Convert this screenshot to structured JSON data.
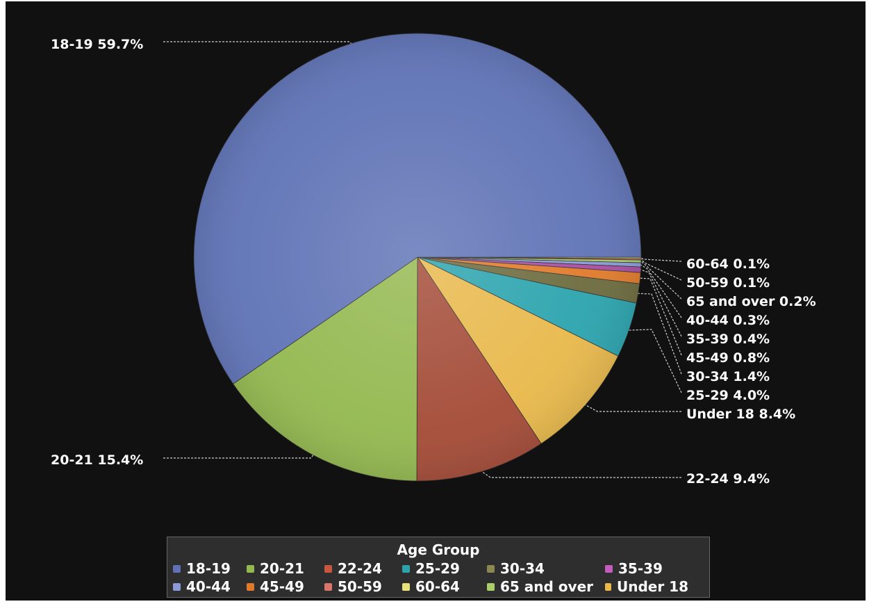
{
  "chart_data": {
    "type": "pie",
    "series": [
      {
        "label": "18-19",
        "value": 59.7,
        "display": "18-19 59.7%",
        "color": "#5e72b5"
      },
      {
        "label": "20-21",
        "value": 15.4,
        "display": "20-21 15.4%",
        "color": "#93b84e"
      },
      {
        "label": "22-24",
        "value": 9.4,
        "display": "22-24 9.4%",
        "color": "#a34a36"
      },
      {
        "label": "Under 18",
        "value": 8.4,
        "display": "Under 18 8.4%",
        "color": "#e8b84a"
      },
      {
        "label": "25-29",
        "value": 4.0,
        "display": "25-29 4.0%",
        "color": "#2aa3ad"
      },
      {
        "label": "30-34",
        "value": 1.4,
        "display": "30-34 1.4%",
        "color": "#6b6a3d"
      },
      {
        "label": "45-49",
        "value": 0.8,
        "display": "45-49 0.8%",
        "color": "#e07a2a"
      },
      {
        "label": "35-39",
        "value": 0.4,
        "display": "35-39 0.4%",
        "color": "#a84ea2"
      },
      {
        "label": "40-44",
        "value": 0.3,
        "display": "40-44 0.3%",
        "color": "#8a9ad8"
      },
      {
        "label": "65 and over",
        "value": 0.2,
        "display": "65 and over 0.2%",
        "color": "#a9cf6b"
      },
      {
        "label": "50-59",
        "value": 0.1,
        "display": "50-59 0.1%",
        "color": "#d9756a"
      },
      {
        "label": "60-64",
        "value": 0.1,
        "display": "60-64 0.1%",
        "color": "#e7e27a"
      }
    ],
    "legend": {
      "title": "Age Group",
      "placement": "bottom-center",
      "items": [
        {
          "label": "18-19",
          "color": "#5e72b5"
        },
        {
          "label": "20-21",
          "color": "#93b84e"
        },
        {
          "label": "22-24",
          "color": "#c9573f"
        },
        {
          "label": "25-29",
          "color": "#2aa3ad"
        },
        {
          "label": "30-34",
          "color": "#8a8750"
        },
        {
          "label": "35-39",
          "color": "#c25cbd"
        },
        {
          "label": "40-44",
          "color": "#8a9ad8"
        },
        {
          "label": "45-49",
          "color": "#e07a2a"
        },
        {
          "label": "50-59",
          "color": "#d9756a"
        },
        {
          "label": "60-64",
          "color": "#e7e27a"
        },
        {
          "label": "65 and over",
          "color": "#a9cf6b"
        },
        {
          "label": "Under 18",
          "color": "#e8b84a"
        }
      ]
    },
    "background": "#111111"
  }
}
